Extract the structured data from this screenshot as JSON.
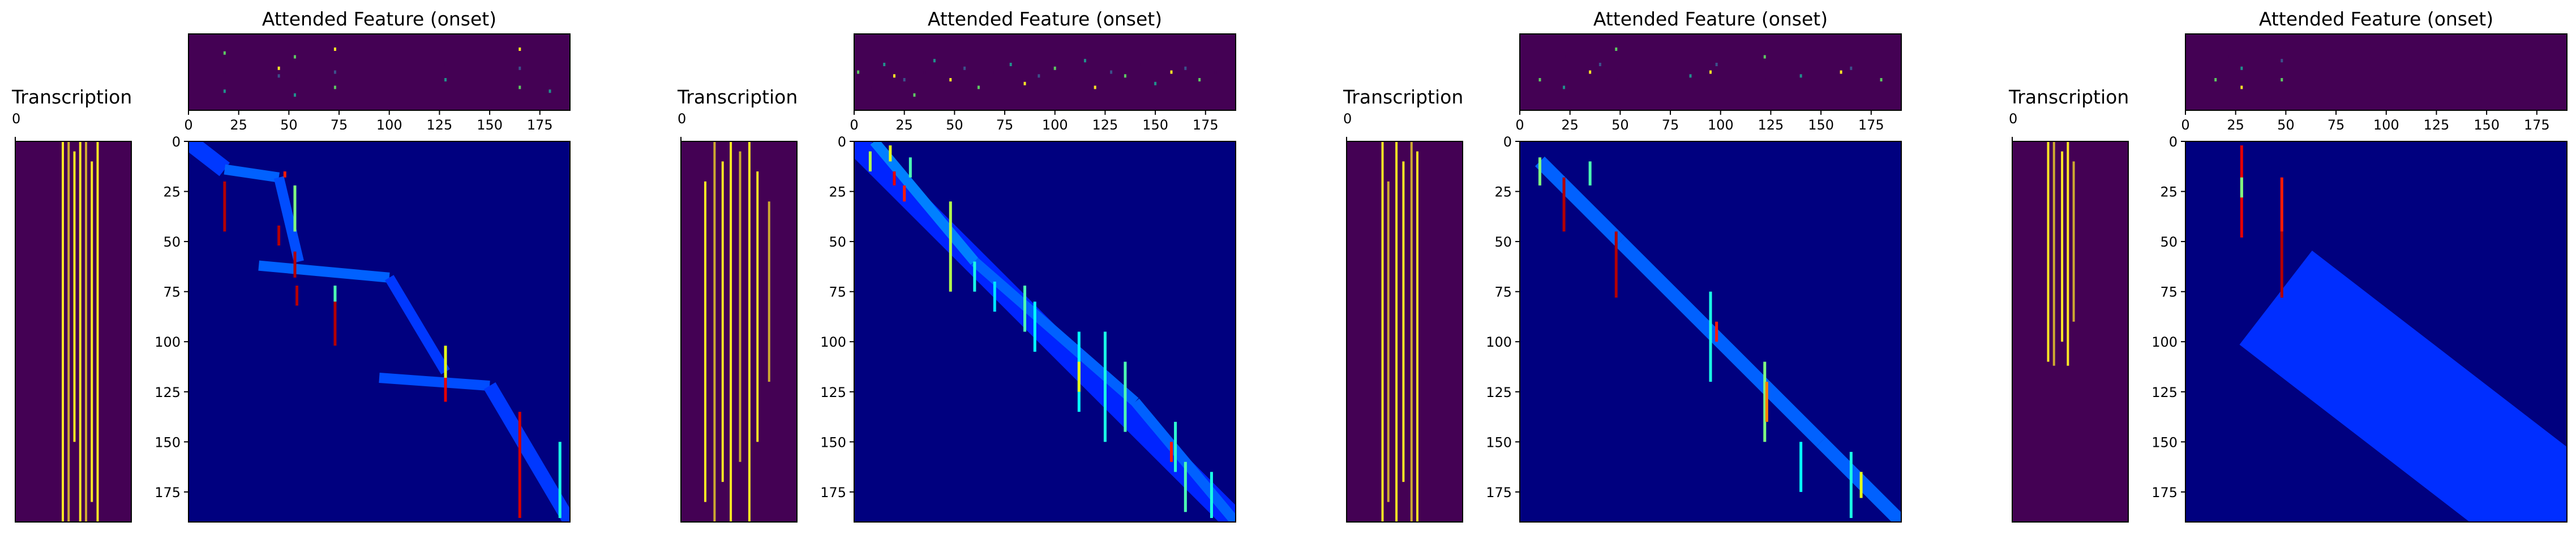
{
  "colors": {
    "viridis_low": "#440154",
    "viridis_high": "#fde725",
    "jet_low": "#00007f",
    "jet_high": "#800000"
  },
  "chart_data": [
    {
      "type": "heatmap",
      "panel": 1,
      "transcription_title": "Transcription",
      "transcription_tick": "0",
      "onset_title": "Attended Feature (onset)",
      "colormap_onset": "viridis",
      "colormap_attention": "jet",
      "xlim": [
        0,
        190
      ],
      "ylim": [
        190,
        0
      ],
      "x_ticks": [
        "0",
        "25",
        "50",
        "75",
        "100",
        "125",
        "150",
        "175"
      ],
      "y_ticks": [
        "0",
        "25",
        "50",
        "75",
        "100",
        "125",
        "150",
        "175"
      ],
      "grid": false,
      "attention_segments": [
        {
          "x0": 0,
          "y0": 0,
          "x1": 18,
          "y1": 14,
          "w": 10,
          "v": 0.18
        },
        {
          "x0": 18,
          "y0": 14,
          "x1": 45,
          "y1": 18,
          "w": 6,
          "v": 0.22
        },
        {
          "x0": 45,
          "y0": 18,
          "x1": 55,
          "y1": 60,
          "w": 6,
          "v": 0.2
        },
        {
          "x0": 35,
          "y0": 62,
          "x1": 100,
          "y1": 68,
          "w": 6,
          "v": 0.22
        },
        {
          "x0": 100,
          "y0": 68,
          "x1": 128,
          "y1": 115,
          "w": 6,
          "v": 0.18
        },
        {
          "x0": 95,
          "y0": 118,
          "x1": 150,
          "y1": 122,
          "w": 6,
          "v": 0.2
        },
        {
          "x0": 150,
          "y0": 122,
          "x1": 190,
          "y1": 190,
          "w": 8,
          "v": 0.18
        }
      ],
      "attention_marks": [
        {
          "x": 18,
          "y0": 20,
          "y1": 45,
          "v": 0.95
        },
        {
          "x": 45,
          "y0": 42,
          "y1": 52,
          "v": 0.95
        },
        {
          "x": 48,
          "y0": 15,
          "y1": 18,
          "v": 0.85
        },
        {
          "x": 53,
          "y0": 22,
          "y1": 45,
          "v": 0.5
        },
        {
          "x": 53,
          "y0": 55,
          "y1": 68,
          "v": 0.95
        },
        {
          "x": 54,
          "y0": 72,
          "y1": 82,
          "v": 0.95
        },
        {
          "x": 73,
          "y0": 72,
          "y1": 80,
          "v": 0.45
        },
        {
          "x": 73,
          "y0": 80,
          "y1": 102,
          "v": 0.95
        },
        {
          "x": 128,
          "y0": 102,
          "y1": 118,
          "v": 0.6
        },
        {
          "x": 128,
          "y0": 118,
          "y1": 130,
          "v": 0.9
        },
        {
          "x": 165,
          "y0": 135,
          "y1": 188,
          "v": 0.92
        },
        {
          "x": 185,
          "y0": 150,
          "y1": 188,
          "v": 0.4
        }
      ],
      "onset_x": [
        18,
        18,
        18,
        45,
        45,
        53,
        53,
        53,
        73,
        73,
        73,
        128,
        128,
        165,
        165,
        165,
        180,
        180
      ],
      "onset_y": [
        0.25,
        0.5,
        0.75,
        0.45,
        0.55,
        0.3,
        0.6,
        0.8,
        0.2,
        0.5,
        0.7,
        0.4,
        0.6,
        0.2,
        0.45,
        0.7,
        0.5,
        0.75
      ],
      "transcription_x": [
        0.4,
        0.45,
        0.5,
        0.55,
        0.6,
        0.65,
        0.7
      ],
      "transcription_y0": [
        0,
        0,
        5,
        0,
        0,
        10,
        0
      ],
      "transcription_y1": [
        190,
        190,
        150,
        190,
        190,
        180,
        190
      ]
    },
    {
      "type": "heatmap",
      "panel": 2,
      "transcription_title": "Transcription",
      "transcription_tick": "0",
      "onset_title": "Attended Feature (onset)",
      "colormap_onset": "viridis",
      "colormap_attention": "jet",
      "xlim": [
        0,
        190
      ],
      "ylim": [
        190,
        0
      ],
      "x_ticks": [
        "0",
        "25",
        "50",
        "75",
        "100",
        "125",
        "150",
        "175"
      ],
      "y_ticks": [
        "0",
        "25",
        "50",
        "75",
        "100",
        "125",
        "150",
        "175"
      ],
      "grid": false,
      "attention_segments": [
        {
          "x0": 0,
          "y0": 0,
          "x1": 190,
          "y1": 190,
          "w": 14,
          "v": 0.16
        },
        {
          "x0": 10,
          "y0": 0,
          "x1": 60,
          "y1": 60,
          "w": 6,
          "v": 0.25
        },
        {
          "x0": 60,
          "y0": 60,
          "x1": 140,
          "y1": 130,
          "w": 6,
          "v": 0.22
        },
        {
          "x0": 140,
          "y0": 130,
          "x1": 190,
          "y1": 190,
          "w": 6,
          "v": 0.22
        }
      ],
      "attention_marks": [
        {
          "x": 8,
          "y0": 5,
          "y1": 15,
          "v": 0.55
        },
        {
          "x": 18,
          "y0": 2,
          "y1": 10,
          "v": 0.6
        },
        {
          "x": 20,
          "y0": 15,
          "y1": 22,
          "v": 0.9
        },
        {
          "x": 25,
          "y0": 22,
          "y1": 30,
          "v": 0.85
        },
        {
          "x": 28,
          "y0": 8,
          "y1": 18,
          "v": 0.45
        },
        {
          "x": 48,
          "y0": 30,
          "y1": 75,
          "v": 0.55
        },
        {
          "x": 60,
          "y0": 60,
          "y1": 75,
          "v": 0.4
        },
        {
          "x": 70,
          "y0": 70,
          "y1": 85,
          "v": 0.35
        },
        {
          "x": 85,
          "y0": 72,
          "y1": 95,
          "v": 0.45
        },
        {
          "x": 90,
          "y0": 80,
          "y1": 105,
          "v": 0.38
        },
        {
          "x": 112,
          "y0": 95,
          "y1": 135,
          "v": 0.38
        },
        {
          "x": 112,
          "y0": 110,
          "y1": 125,
          "v": 0.6
        },
        {
          "x": 125,
          "y0": 95,
          "y1": 150,
          "v": 0.4
        },
        {
          "x": 135,
          "y0": 110,
          "y1": 145,
          "v": 0.45
        },
        {
          "x": 160,
          "y0": 140,
          "y1": 165,
          "v": 0.42
        },
        {
          "x": 158,
          "y0": 150,
          "y1": 160,
          "v": 0.85
        },
        {
          "x": 165,
          "y0": 160,
          "y1": 185,
          "v": 0.45
        },
        {
          "x": 178,
          "y0": 165,
          "y1": 188,
          "v": 0.4
        }
      ],
      "onset_x": [
        2,
        8,
        15,
        20,
        25,
        30,
        35,
        40,
        48,
        55,
        62,
        70,
        78,
        85,
        92,
        100,
        108,
        115,
        120,
        128,
        135,
        142,
        150,
        158,
        165,
        172,
        180
      ],
      "onset_y": [
        0.5,
        0.7,
        0.4,
        0.55,
        0.6,
        0.8,
        0.5,
        0.35,
        0.6,
        0.45,
        0.7,
        0.5,
        0.4,
        0.65,
        0.55,
        0.45,
        0.6,
        0.35,
        0.7,
        0.5,
        0.55,
        0.4,
        0.65,
        0.5,
        0.45,
        0.6,
        0.5
      ],
      "transcription_x": [
        0.2,
        0.28,
        0.35,
        0.42,
        0.5,
        0.58,
        0.65,
        0.75
      ],
      "transcription_y0": [
        20,
        0,
        10,
        0,
        5,
        0,
        15,
        30
      ],
      "transcription_y1": [
        180,
        190,
        170,
        190,
        160,
        190,
        150,
        120
      ]
    },
    {
      "type": "heatmap",
      "panel": 3,
      "transcription_title": "Transcription",
      "transcription_tick": "0",
      "onset_title": "Attended Feature (onset)",
      "colormap_onset": "viridis",
      "colormap_attention": "jet",
      "xlim": [
        0,
        190
      ],
      "ylim": [
        190,
        0
      ],
      "x_ticks": [
        "0",
        "25",
        "50",
        "75",
        "100",
        "125",
        "150",
        "175"
      ],
      "y_ticks": [
        "0",
        "25",
        "50",
        "75",
        "100",
        "125",
        "150",
        "175"
      ],
      "grid": false,
      "attention_segments": [
        {
          "x0": 10,
          "y0": 10,
          "x1": 50,
          "y1": 50,
          "w": 8,
          "v": 0.22
        },
        {
          "x0": 50,
          "y0": 50,
          "x1": 95,
          "y1": 95,
          "w": 8,
          "v": 0.22
        },
        {
          "x0": 95,
          "y0": 95,
          "x1": 150,
          "y1": 150,
          "w": 8,
          "v": 0.22
        },
        {
          "x0": 150,
          "y0": 150,
          "x1": 190,
          "y1": 190,
          "w": 8,
          "v": 0.22
        }
      ],
      "attention_marks": [
        {
          "x": 10,
          "y0": 8,
          "y1": 22,
          "v": 0.5
        },
        {
          "x": 35,
          "y0": 10,
          "y1": 22,
          "v": 0.45
        },
        {
          "x": 22,
          "y0": 18,
          "y1": 45,
          "v": 0.95
        },
        {
          "x": 48,
          "y0": 45,
          "y1": 78,
          "v": 0.95
        },
        {
          "x": 95,
          "y0": 75,
          "y1": 120,
          "v": 0.4
        },
        {
          "x": 98,
          "y0": 90,
          "y1": 100,
          "v": 0.85
        },
        {
          "x": 122,
          "y0": 110,
          "y1": 150,
          "v": 0.5
        },
        {
          "x": 123,
          "y0": 120,
          "y1": 140,
          "v": 0.75
        },
        {
          "x": 140,
          "y0": 150,
          "y1": 175,
          "v": 0.38
        },
        {
          "x": 165,
          "y0": 155,
          "y1": 188,
          "v": 0.4
        },
        {
          "x": 170,
          "y0": 165,
          "y1": 178,
          "v": 0.6
        }
      ],
      "onset_x": [
        10,
        22,
        22,
        35,
        40,
        48,
        48,
        85,
        95,
        98,
        122,
        123,
        140,
        160,
        165,
        180
      ],
      "onset_y": [
        0.6,
        0.3,
        0.7,
        0.5,
        0.4,
        0.2,
        0.6,
        0.55,
        0.5,
        0.4,
        0.3,
        0.6,
        0.55,
        0.5,
        0.45,
        0.6
      ],
      "transcription_x": [
        0.3,
        0.35,
        0.42,
        0.48,
        0.55,
        0.6
      ],
      "transcription_y0": [
        0,
        20,
        0,
        10,
        0,
        5
      ],
      "transcription_y1": [
        190,
        180,
        190,
        170,
        190,
        190
      ]
    },
    {
      "type": "heatmap",
      "panel": 4,
      "transcription_title": "Transcription",
      "transcription_tick": "0",
      "onset_title": "Attended Feature (onset)",
      "colormap_onset": "viridis",
      "colormap_attention": "jet",
      "xlim": [
        0,
        190
      ],
      "ylim": [
        190,
        0
      ],
      "x_ticks": [
        "0",
        "25",
        "50",
        "75",
        "100",
        "125",
        "150",
        "175"
      ],
      "y_ticks": [
        "0",
        "25",
        "50",
        "75",
        "100",
        "125",
        "150",
        "175"
      ],
      "grid": false,
      "attention_segments": [
        {
          "x0": 45,
          "y0": 78,
          "x1": 190,
          "y1": 190,
          "w": 70,
          "v": 0.17
        }
      ],
      "attention_marks": [
        {
          "x": 28,
          "y0": 2,
          "y1": 48,
          "v": 0.9
        },
        {
          "x": 28,
          "y0": 18,
          "y1": 28,
          "v": 0.5
        },
        {
          "x": 48,
          "y0": 18,
          "y1": 45,
          "v": 0.85
        },
        {
          "x": 48,
          "y0": 45,
          "y1": 78,
          "v": 0.95
        }
      ],
      "onset_x": [
        15,
        22,
        28,
        28,
        48,
        48
      ],
      "onset_y": [
        0.6,
        0.3,
        0.45,
        0.7,
        0.35,
        0.6
      ],
      "transcription_x": [
        0.3,
        0.35,
        0.42,
        0.47,
        0.52
      ],
      "transcription_y0": [
        0,
        0,
        5,
        0,
        10
      ],
      "transcription_y1": [
        110,
        112,
        100,
        112,
        90
      ]
    }
  ]
}
